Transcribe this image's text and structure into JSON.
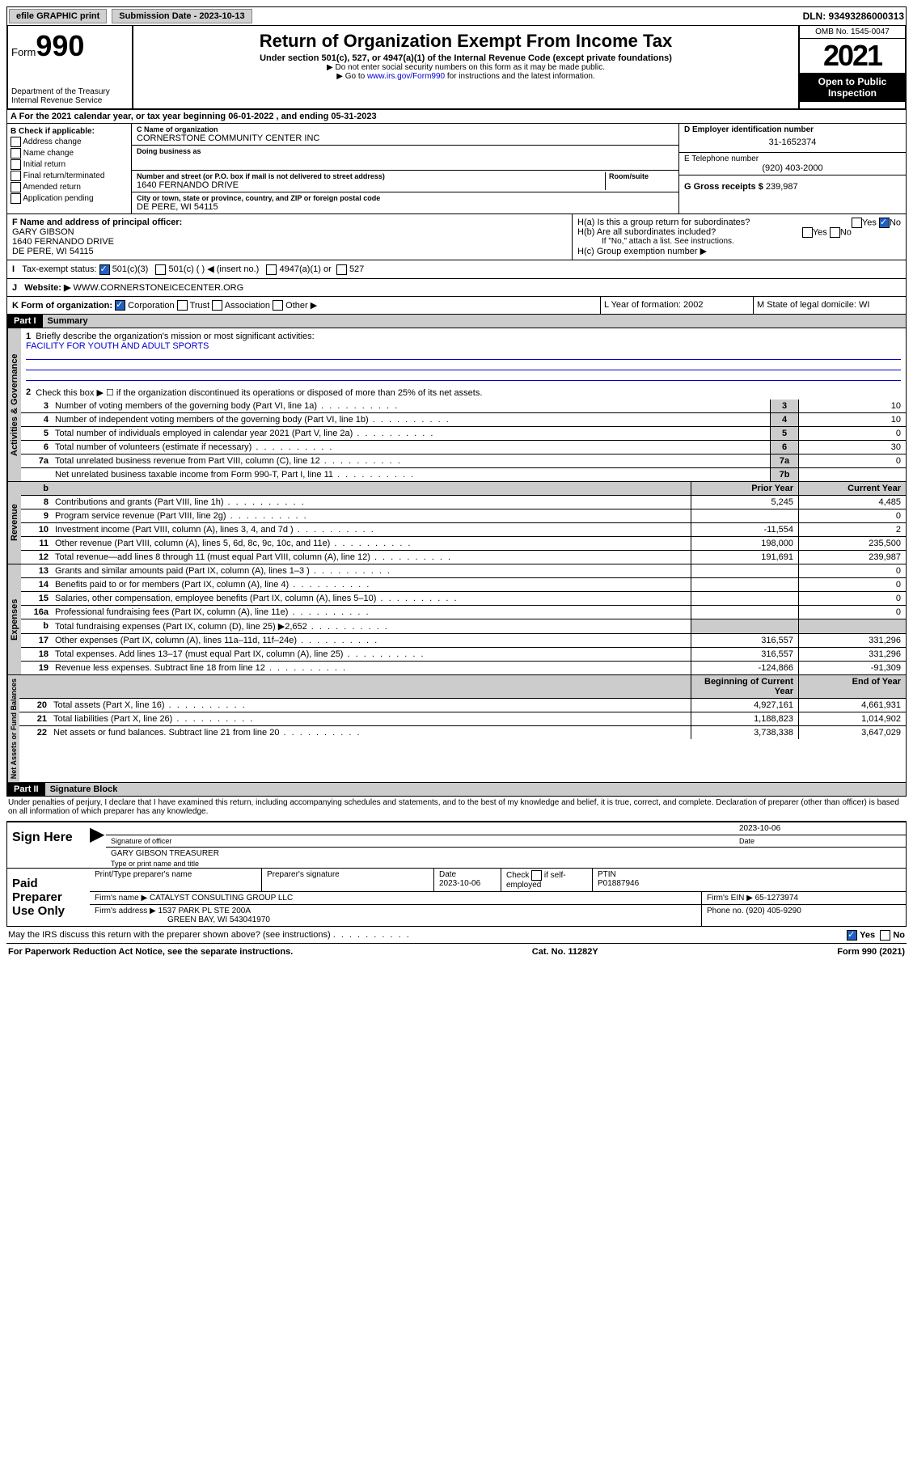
{
  "topbar": {
    "efile": "efile GRAPHIC print",
    "submission_label": "Submission Date - 2023-10-13",
    "dln": "DLN: 93493286000313"
  },
  "header": {
    "form_word": "Form",
    "form_num": "990",
    "dept": "Department of the Treasury",
    "irs": "Internal Revenue Service",
    "title": "Return of Organization Exempt From Income Tax",
    "sub1": "Under section 501(c), 527, or 4947(a)(1) of the Internal Revenue Code (except private foundations)",
    "sub2": "▶ Do not enter social security numbers on this form as it may be made public.",
    "sub3_pre": "▶ Go to ",
    "sub3_link": "www.irs.gov/Form990",
    "sub3_post": " for instructions and the latest information.",
    "omb": "OMB No. 1545-0047",
    "year": "2021",
    "inspection": "Open to Public Inspection"
  },
  "lineA": "A For the 2021 calendar year, or tax year beginning 06-01-2022   , and ending 05-31-2023",
  "colB": {
    "title": "B Check if applicable:",
    "items": [
      "Address change",
      "Name change",
      "Initial return",
      "Final return/terminated",
      "Amended return",
      "Application pending"
    ]
  },
  "colC": {
    "name_lbl": "C Name of organization",
    "name": "CORNERSTONE COMMUNITY CENTER INC",
    "dba_lbl": "Doing business as",
    "addr_lbl": "Number and street (or P.O. box if mail is not delivered to street address)",
    "room_lbl": "Room/suite",
    "addr": "1640 FERNANDO DRIVE",
    "city_lbl": "City or town, state or province, country, and ZIP or foreign postal code",
    "city": "DE PERE, WI  54115"
  },
  "colD": {
    "d_lbl": "D Employer identification number",
    "ein": "31-1652374",
    "e_lbl": "E Telephone number",
    "phone": "(920) 403-2000",
    "g_lbl": "G Gross receipts $",
    "gross": "239,987"
  },
  "rowF": {
    "f_lbl": "F Name and address of principal officer:",
    "name": "GARY GIBSON",
    "addr1": "1640 FERNANDO DRIVE",
    "addr2": "DE PERE, WI  54115"
  },
  "rowH": {
    "ha": "H(a)  Is this a group return for subordinates?",
    "hb": "H(b)  Are all subordinates included?",
    "hb_note": "If \"No,\" attach a list. See instructions.",
    "hc": "H(c)  Group exemption number ▶",
    "yes": "Yes",
    "no": "No"
  },
  "rowI": {
    "lbl": "Tax-exempt status:",
    "o1": "501(c)(3)",
    "o2": "501(c) (  ) ◀ (insert no.)",
    "o3": "4947(a)(1) or",
    "o4": "527"
  },
  "rowJ": {
    "lbl": "Website: ▶",
    "val": "WWW.CORNERSTONEICECENTER.ORG"
  },
  "rowK": {
    "lbl": "K Form of organization:",
    "o1": "Corporation",
    "o2": "Trust",
    "o3": "Association",
    "o4": "Other ▶"
  },
  "rowL": {
    "l": "L Year of formation: 2002",
    "m": "M State of legal domicile: WI"
  },
  "part1": {
    "bar": "Part I",
    "title": "Summary"
  },
  "summary": {
    "l1": "Briefly describe the organization's mission or most significant activities:",
    "mission": "FACILITY FOR YOUTH AND ADULT SPORTS",
    "l2": "Check this box ▶ ☐  if the organization discontinued its operations or disposed of more than 25% of its net assets.",
    "rows": [
      {
        "n": "3",
        "d": "Number of voting members of the governing body (Part VI, line 1a)",
        "b": "3",
        "v": "10"
      },
      {
        "n": "4",
        "d": "Number of independent voting members of the governing body (Part VI, line 1b)",
        "b": "4",
        "v": "10"
      },
      {
        "n": "5",
        "d": "Total number of individuals employed in calendar year 2021 (Part V, line 2a)",
        "b": "5",
        "v": "0"
      },
      {
        "n": "6",
        "d": "Total number of volunteers (estimate if necessary)",
        "b": "6",
        "v": "30"
      },
      {
        "n": "7a",
        "d": "Total unrelated business revenue from Part VIII, column (C), line 12",
        "b": "7a",
        "v": "0"
      },
      {
        "n": "",
        "d": "Net unrelated business taxable income from Form 990-T, Part I, line 11",
        "b": "7b",
        "v": ""
      }
    ],
    "col_prior": "Prior Year",
    "col_current": "Current Year",
    "rev": [
      {
        "n": "8",
        "d": "Contributions and grants (Part VIII, line 1h)",
        "p": "5,245",
        "c": "4,485"
      },
      {
        "n": "9",
        "d": "Program service revenue (Part VIII, line 2g)",
        "p": "",
        "c": "0"
      },
      {
        "n": "10",
        "d": "Investment income (Part VIII, column (A), lines 3, 4, and 7d )",
        "p": "-11,554",
        "c": "2"
      },
      {
        "n": "11",
        "d": "Other revenue (Part VIII, column (A), lines 5, 6d, 8c, 9c, 10c, and 11e)",
        "p": "198,000",
        "c": "235,500"
      },
      {
        "n": "12",
        "d": "Total revenue—add lines 8 through 11 (must equal Part VIII, column (A), line 12)",
        "p": "191,691",
        "c": "239,987"
      }
    ],
    "exp": [
      {
        "n": "13",
        "d": "Grants and similar amounts paid (Part IX, column (A), lines 1–3 )",
        "p": "",
        "c": "0"
      },
      {
        "n": "14",
        "d": "Benefits paid to or for members (Part IX, column (A), line 4)",
        "p": "",
        "c": "0"
      },
      {
        "n": "15",
        "d": "Salaries, other compensation, employee benefits (Part IX, column (A), lines 5–10)",
        "p": "",
        "c": "0"
      },
      {
        "n": "16a",
        "d": "Professional fundraising fees (Part IX, column (A), line 11e)",
        "p": "",
        "c": "0"
      },
      {
        "n": "b",
        "d": "Total fundraising expenses (Part IX, column (D), line 25) ▶2,652",
        "p": "gray",
        "c": "gray"
      },
      {
        "n": "17",
        "d": "Other expenses (Part IX, column (A), lines 11a–11d, 11f–24e)",
        "p": "316,557",
        "c": "331,296"
      },
      {
        "n": "18",
        "d": "Total expenses. Add lines 13–17 (must equal Part IX, column (A), line 25)",
        "p": "316,557",
        "c": "331,296"
      },
      {
        "n": "19",
        "d": "Revenue less expenses. Subtract line 18 from line 12",
        "p": "-124,866",
        "c": "-91,309"
      }
    ],
    "col_begin": "Beginning of Current Year",
    "col_end": "End of Year",
    "net": [
      {
        "n": "20",
        "d": "Total assets (Part X, line 16)",
        "p": "4,927,161",
        "c": "4,661,931"
      },
      {
        "n": "21",
        "d": "Total liabilities (Part X, line 26)",
        "p": "1,188,823",
        "c": "1,014,902"
      },
      {
        "n": "22",
        "d": "Net assets or fund balances. Subtract line 21 from line 20",
        "p": "3,738,338",
        "c": "3,647,029"
      }
    ],
    "vlabels": {
      "gov": "Activities & Governance",
      "rev": "Revenue",
      "exp": "Expenses",
      "net": "Net Assets or Fund Balances"
    }
  },
  "part2": {
    "bar": "Part II",
    "title": "Signature Block"
  },
  "penalty": "Under penalties of perjury, I declare that I have examined this return, including accompanying schedules and statements, and to the best of my knowledge and belief, it is true, correct, and complete. Declaration of preparer (other than officer) is based on all information of which preparer has any knowledge.",
  "sign": {
    "here": "Sign Here",
    "date": "2023-10-06",
    "sig_lbl": "Signature of officer",
    "date_lbl": "Date",
    "name": "GARY GIBSON  TREASURER",
    "name_lbl": "Type or print name and title"
  },
  "prep": {
    "title": "Paid Preparer Use Only",
    "h1": "Print/Type preparer's name",
    "h2": "Preparer's signature",
    "h3": "Date",
    "h4_pre": "Check ",
    "h4_post": " if self-employed",
    "h5": "PTIN",
    "date": "2023-10-06",
    "ptin": "P01887946",
    "firm_lbl": "Firm's name   ▶",
    "firm": "CATALYST CONSULTING GROUP LLC",
    "ein_lbl": "Firm's EIN ▶",
    "ein": "65-1273974",
    "addr_lbl": "Firm's address ▶",
    "addr1": "1537 PARK PL STE 200A",
    "addr2": "GREEN BAY, WI  543041970",
    "phone_lbl": "Phone no.",
    "phone": "(920) 405-9290"
  },
  "discuss": {
    "q": "May the IRS discuss this return with the preparer shown above? (see instructions)",
    "yes": "Yes",
    "no": "No"
  },
  "footer": {
    "l": "For Paperwork Reduction Act Notice, see the separate instructions.",
    "c": "Cat. No. 11282Y",
    "r": "Form 990 (2021)"
  }
}
